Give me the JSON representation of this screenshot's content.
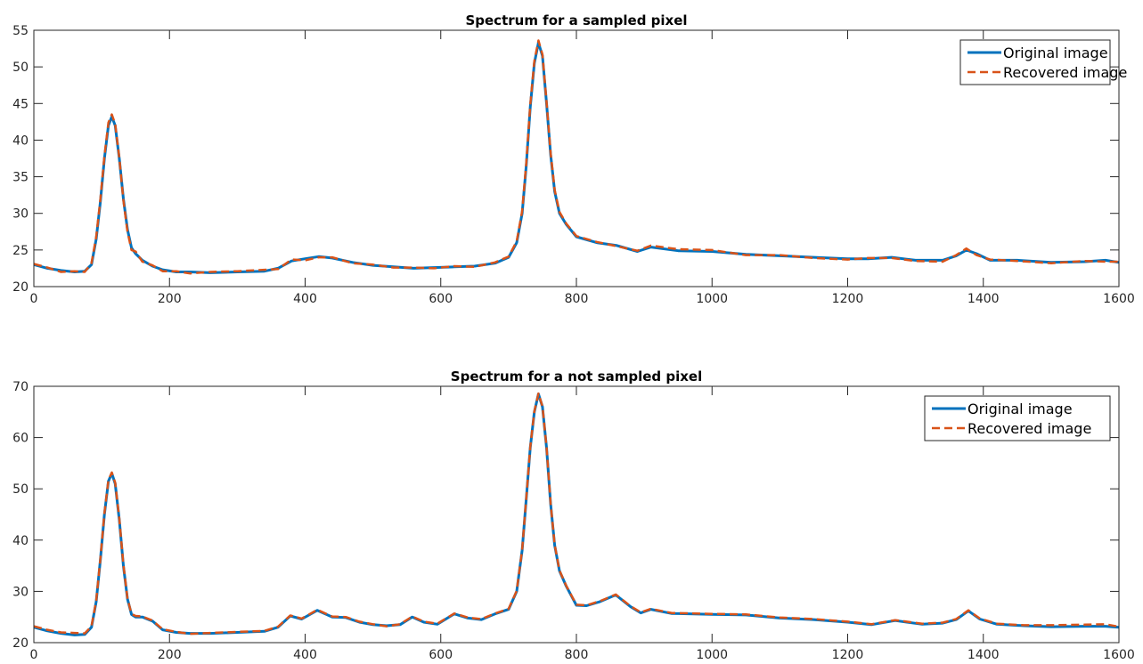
{
  "chart_data": [
    {
      "type": "line",
      "title": "Spectrum for a sampled pixel",
      "xlabel": "",
      "ylabel": "",
      "xlim": [
        0,
        1600
      ],
      "ylim": [
        20,
        55
      ],
      "xticks": [
        0,
        200,
        400,
        600,
        800,
        1000,
        1200,
        1400,
        1600
      ],
      "yticks": [
        20,
        25,
        30,
        35,
        40,
        45,
        50,
        55
      ],
      "grid": false,
      "legend": "top-right",
      "series": [
        {
          "name": "Original image",
          "color": "#0072BD",
          "style": "solid",
          "x": [
            0,
            20,
            40,
            60,
            75,
            85,
            92,
            98,
            104,
            110,
            115,
            120,
            126,
            132,
            138,
            144,
            150,
            160,
            175,
            190,
            210,
            230,
            260,
            300,
            340,
            360,
            380,
            400,
            420,
            440,
            470,
            500,
            530,
            560,
            590,
            620,
            650,
            680,
            700,
            712,
            720,
            726,
            732,
            738,
            744,
            750,
            756,
            762,
            768,
            775,
            785,
            800,
            830,
            860,
            890,
            910,
            950,
            1000,
            1050,
            1100,
            1150,
            1200,
            1230,
            1265,
            1300,
            1340,
            1360,
            1375,
            1390,
            1410,
            1450,
            1500,
            1550,
            1580,
            1600
          ],
          "y": [
            23.0,
            22.5,
            22.2,
            22.0,
            22.1,
            23.0,
            26.5,
            31.5,
            37.5,
            42.0,
            43.2,
            42.0,
            37.5,
            32.0,
            27.8,
            25.3,
            24.5,
            23.6,
            22.8,
            22.3,
            22.0,
            22.0,
            21.9,
            22.0,
            22.1,
            22.5,
            23.5,
            23.8,
            24.1,
            23.9,
            23.3,
            22.9,
            22.7,
            22.5,
            22.6,
            22.7,
            22.8,
            23.2,
            24.0,
            26.0,
            30.0,
            36.5,
            44.5,
            50.5,
            53.3,
            51.5,
            45.0,
            38.0,
            33.0,
            30.0,
            28.5,
            26.8,
            26.0,
            25.6,
            24.8,
            25.4,
            24.9,
            24.8,
            24.4,
            24.2,
            24.0,
            23.8,
            23.8,
            24.0,
            23.6,
            23.6,
            24.2,
            25.0,
            24.5,
            23.6,
            23.6,
            23.3,
            23.4,
            23.6,
            23.3
          ]
        },
        {
          "name": "Recovered image",
          "color": "#D95319",
          "style": "dashed",
          "x": [
            0,
            20,
            40,
            60,
            75,
            85,
            92,
            98,
            104,
            110,
            115,
            120,
            126,
            132,
            138,
            144,
            150,
            160,
            175,
            190,
            210,
            230,
            260,
            300,
            340,
            360,
            380,
            400,
            420,
            440,
            470,
            500,
            530,
            560,
            590,
            620,
            650,
            680,
            700,
            712,
            720,
            726,
            732,
            738,
            744,
            750,
            756,
            762,
            768,
            775,
            785,
            800,
            830,
            860,
            890,
            910,
            950,
            1000,
            1050,
            1100,
            1150,
            1200,
            1230,
            1265,
            1300,
            1340,
            1360,
            1375,
            1390,
            1410,
            1450,
            1500,
            1550,
            1580,
            1600
          ],
          "y": [
            23.1,
            22.6,
            22.0,
            22.1,
            22.0,
            23.2,
            26.8,
            31.8,
            37.8,
            42.4,
            43.5,
            42.2,
            37.6,
            31.8,
            27.5,
            25.0,
            24.8,
            23.4,
            22.9,
            22.1,
            22.1,
            21.8,
            22.0,
            22.1,
            22.3,
            22.4,
            23.7,
            23.6,
            24.0,
            24.0,
            23.2,
            23.0,
            22.6,
            22.6,
            22.5,
            22.8,
            22.7,
            23.3,
            24.1,
            26.2,
            30.3,
            36.8,
            44.8,
            50.8,
            53.6,
            51.7,
            45.2,
            38.2,
            33.2,
            30.2,
            28.6,
            26.9,
            26.1,
            25.5,
            24.9,
            25.6,
            25.1,
            25.0,
            24.3,
            24.3,
            23.9,
            23.7,
            23.9,
            23.9,
            23.5,
            23.4,
            24.3,
            25.2,
            24.3,
            23.7,
            23.5,
            23.2,
            23.5,
            23.4,
            23.4
          ]
        }
      ]
    },
    {
      "type": "line",
      "title": "Spectrum for a not sampled pixel",
      "xlabel": "",
      "ylabel": "",
      "xlim": [
        0,
        1600
      ],
      "ylim": [
        20,
        70
      ],
      "xticks": [
        0,
        200,
        400,
        600,
        800,
        1000,
        1200,
        1400,
        1600
      ],
      "yticks": [
        20,
        30,
        40,
        50,
        60,
        70
      ],
      "grid": false,
      "legend": "top-right",
      "series": [
        {
          "name": "Original image",
          "color": "#0072BD",
          "style": "solid",
          "x": [
            0,
            20,
            40,
            60,
            75,
            85,
            92,
            98,
            104,
            110,
            115,
            120,
            126,
            132,
            138,
            144,
            150,
            160,
            175,
            190,
            210,
            230,
            260,
            300,
            340,
            360,
            378,
            395,
            418,
            440,
            460,
            480,
            500,
            520,
            540,
            558,
            575,
            595,
            620,
            640,
            660,
            680,
            700,
            712,
            720,
            726,
            732,
            738,
            744,
            750,
            756,
            762,
            768,
            775,
            785,
            800,
            815,
            835,
            858,
            880,
            895,
            910,
            940,
            1000,
            1050,
            1100,
            1150,
            1200,
            1235,
            1270,
            1310,
            1340,
            1360,
            1378,
            1395,
            1420,
            1460,
            1500,
            1550,
            1580,
            1600
          ],
          "y": [
            23.0,
            22.3,
            21.8,
            21.5,
            21.6,
            23.0,
            28.0,
            36.0,
            45.0,
            51.5,
            53.0,
            51.0,
            44.0,
            35.0,
            28.5,
            25.5,
            25.0,
            25.0,
            24.2,
            22.5,
            22.0,
            21.8,
            21.8,
            22.0,
            22.2,
            23.0,
            25.2,
            24.6,
            26.3,
            25.0,
            24.9,
            24.0,
            23.5,
            23.3,
            23.5,
            25.0,
            24.0,
            23.6,
            25.6,
            24.8,
            24.5,
            25.6,
            26.5,
            30.0,
            38.0,
            48.0,
            58.0,
            65.0,
            68.5,
            66.0,
            58.0,
            47.0,
            39.0,
            34.0,
            31.0,
            27.3,
            27.2,
            28.0,
            29.3,
            27.0,
            25.8,
            26.5,
            25.7,
            25.5,
            25.4,
            24.8,
            24.5,
            24.0,
            23.5,
            24.3,
            23.6,
            23.8,
            24.5,
            26.2,
            24.6,
            23.6,
            23.3,
            23.1,
            23.2,
            23.2,
            23.0
          ]
        },
        {
          "name": "Recovered image",
          "color": "#D95319",
          "style": "dashed",
          "x": [
            0,
            20,
            40,
            60,
            75,
            85,
            92,
            98,
            104,
            110,
            115,
            120,
            126,
            132,
            138,
            144,
            150,
            160,
            175,
            190,
            210,
            230,
            260,
            300,
            340,
            360,
            378,
            395,
            418,
            440,
            460,
            480,
            500,
            520,
            540,
            558,
            575,
            595,
            620,
            640,
            660,
            680,
            700,
            712,
            720,
            726,
            732,
            738,
            744,
            750,
            756,
            762,
            768,
            775,
            785,
            800,
            815,
            835,
            858,
            880,
            895,
            910,
            940,
            1000,
            1050,
            1100,
            1150,
            1200,
            1235,
            1270,
            1310,
            1340,
            1360,
            1378,
            1395,
            1420,
            1460,
            1500,
            1550,
            1580,
            1600
          ],
          "y": [
            23.2,
            22.5,
            22.0,
            21.9,
            21.8,
            23.2,
            28.2,
            36.2,
            45.2,
            51.7,
            53.2,
            51.2,
            44.2,
            35.2,
            28.6,
            25.6,
            25.2,
            25.1,
            24.3,
            22.6,
            22.1,
            21.7,
            21.9,
            22.1,
            22.3,
            23.1,
            25.3,
            24.7,
            26.4,
            25.1,
            25.0,
            24.1,
            23.6,
            23.2,
            23.6,
            25.1,
            24.1,
            23.7,
            25.7,
            24.9,
            24.6,
            25.7,
            26.6,
            30.1,
            38.1,
            48.1,
            58.1,
            65.1,
            68.6,
            66.1,
            58.1,
            47.1,
            39.1,
            34.1,
            31.1,
            27.4,
            27.3,
            28.1,
            29.4,
            27.1,
            25.9,
            26.6,
            25.8,
            25.6,
            25.5,
            24.9,
            24.6,
            24.1,
            23.6,
            24.4,
            23.7,
            23.9,
            24.6,
            26.3,
            24.7,
            23.7,
            23.4,
            23.4,
            23.5,
            23.6,
            23.1
          ]
        }
      ]
    }
  ]
}
